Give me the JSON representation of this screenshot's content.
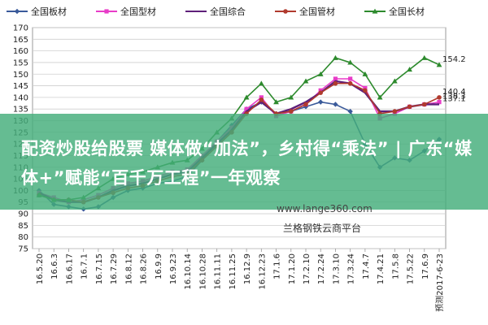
{
  "chart_data": {
    "type": "line",
    "ylim": [
      75,
      170
    ],
    "yticks": [
      75,
      80,
      85,
      90,
      95,
      100,
      105,
      110,
      115,
      120,
      125,
      130,
      135,
      140,
      145,
      150,
      155,
      160,
      165,
      170
    ],
    "categories": [
      "16.5.20",
      "16.6.3",
      "16.6.17",
      "16.7.1",
      "16.7.15",
      "16.7.29",
      "16.8.12",
      "16.8.26",
      "16.9.9",
      "16.9.23",
      "16.10.14",
      "16.10.28",
      "16.11.11",
      "16.11.25",
      "16.12.9",
      "16.12.23",
      "17.1.6",
      "17.1.20",
      "17.2.10",
      "17.2.24",
      "17.3.10",
      "17.3.24",
      "17.4.7",
      "17.4.21",
      "17.5.8",
      "17.5.22",
      "17.6.9",
      "2017-6-23"
    ],
    "x_last_label": "预测2017-6-23",
    "legend": [
      "全国板材",
      "全国型材",
      "全国综合",
      "全国管材",
      "全国长材"
    ],
    "legend_position": "top",
    "grid": true,
    "series": [
      {
        "name": "全国板材",
        "color": "#3a5a9a",
        "marker": "diamond",
        "values": [
          100,
          94,
          93,
          92,
          93,
          97,
          100,
          101,
          103,
          104,
          106,
          113,
          121,
          128,
          135,
          138,
          133,
          134,
          136,
          138,
          137,
          134,
          120,
          110,
          114,
          113,
          117,
          122
        ],
        "end_label": ""
      },
      {
        "name": "全国型材",
        "color": "#e83cc8",
        "marker": "square",
        "values": [
          99,
          97,
          95,
          96,
          98,
          101,
          103,
          104,
          106,
          108,
          109,
          115,
          121,
          127,
          135,
          140,
          132,
          134,
          137,
          143,
          148,
          148,
          144,
          131,
          133,
          136,
          137,
          138
        ],
        "end_label": "138.3"
      },
      {
        "name": "全国综合",
        "color": "#5e1f7a",
        "marker": "none",
        "values": [
          99,
          96,
          95,
          95,
          97,
          100,
          102,
          103,
          105,
          107,
          108,
          114,
          120,
          126,
          134,
          138,
          133,
          135,
          138,
          142,
          147,
          146,
          142,
          134,
          134,
          136,
          137,
          137
        ],
        "end_label": "137.1"
      },
      {
        "name": "全国管材",
        "color": "#b03a2e",
        "marker": "circle",
        "values": [
          98,
          96,
          96,
          95,
          97,
          99,
          101,
          102,
          104,
          106,
          107,
          113,
          119,
          125,
          133,
          139,
          133,
          134,
          137,
          142,
          146,
          146,
          143,
          133,
          134,
          136,
          137,
          140
        ],
        "end_label": "140.4"
      },
      {
        "name": "全国长材",
        "color": "#2d8a2d",
        "marker": "triangle",
        "values": [
          98,
          96,
          96,
          97,
          101,
          105,
          107,
          108,
          110,
          112,
          113,
          118,
          125,
          131,
          140,
          146,
          138,
          140,
          147,
          150,
          157,
          155,
          150,
          140,
          147,
          152,
          157,
          154
        ],
        "end_label": "154.2"
      }
    ]
  },
  "headline": "配资炒股给股票 媒体做“加法”，乡村得“乘法” | 广东“媒体+”赋能“百千万工程”一年观察",
  "watermark": "www.lange360.com",
  "platform": "兰格钢铁云商平台"
}
